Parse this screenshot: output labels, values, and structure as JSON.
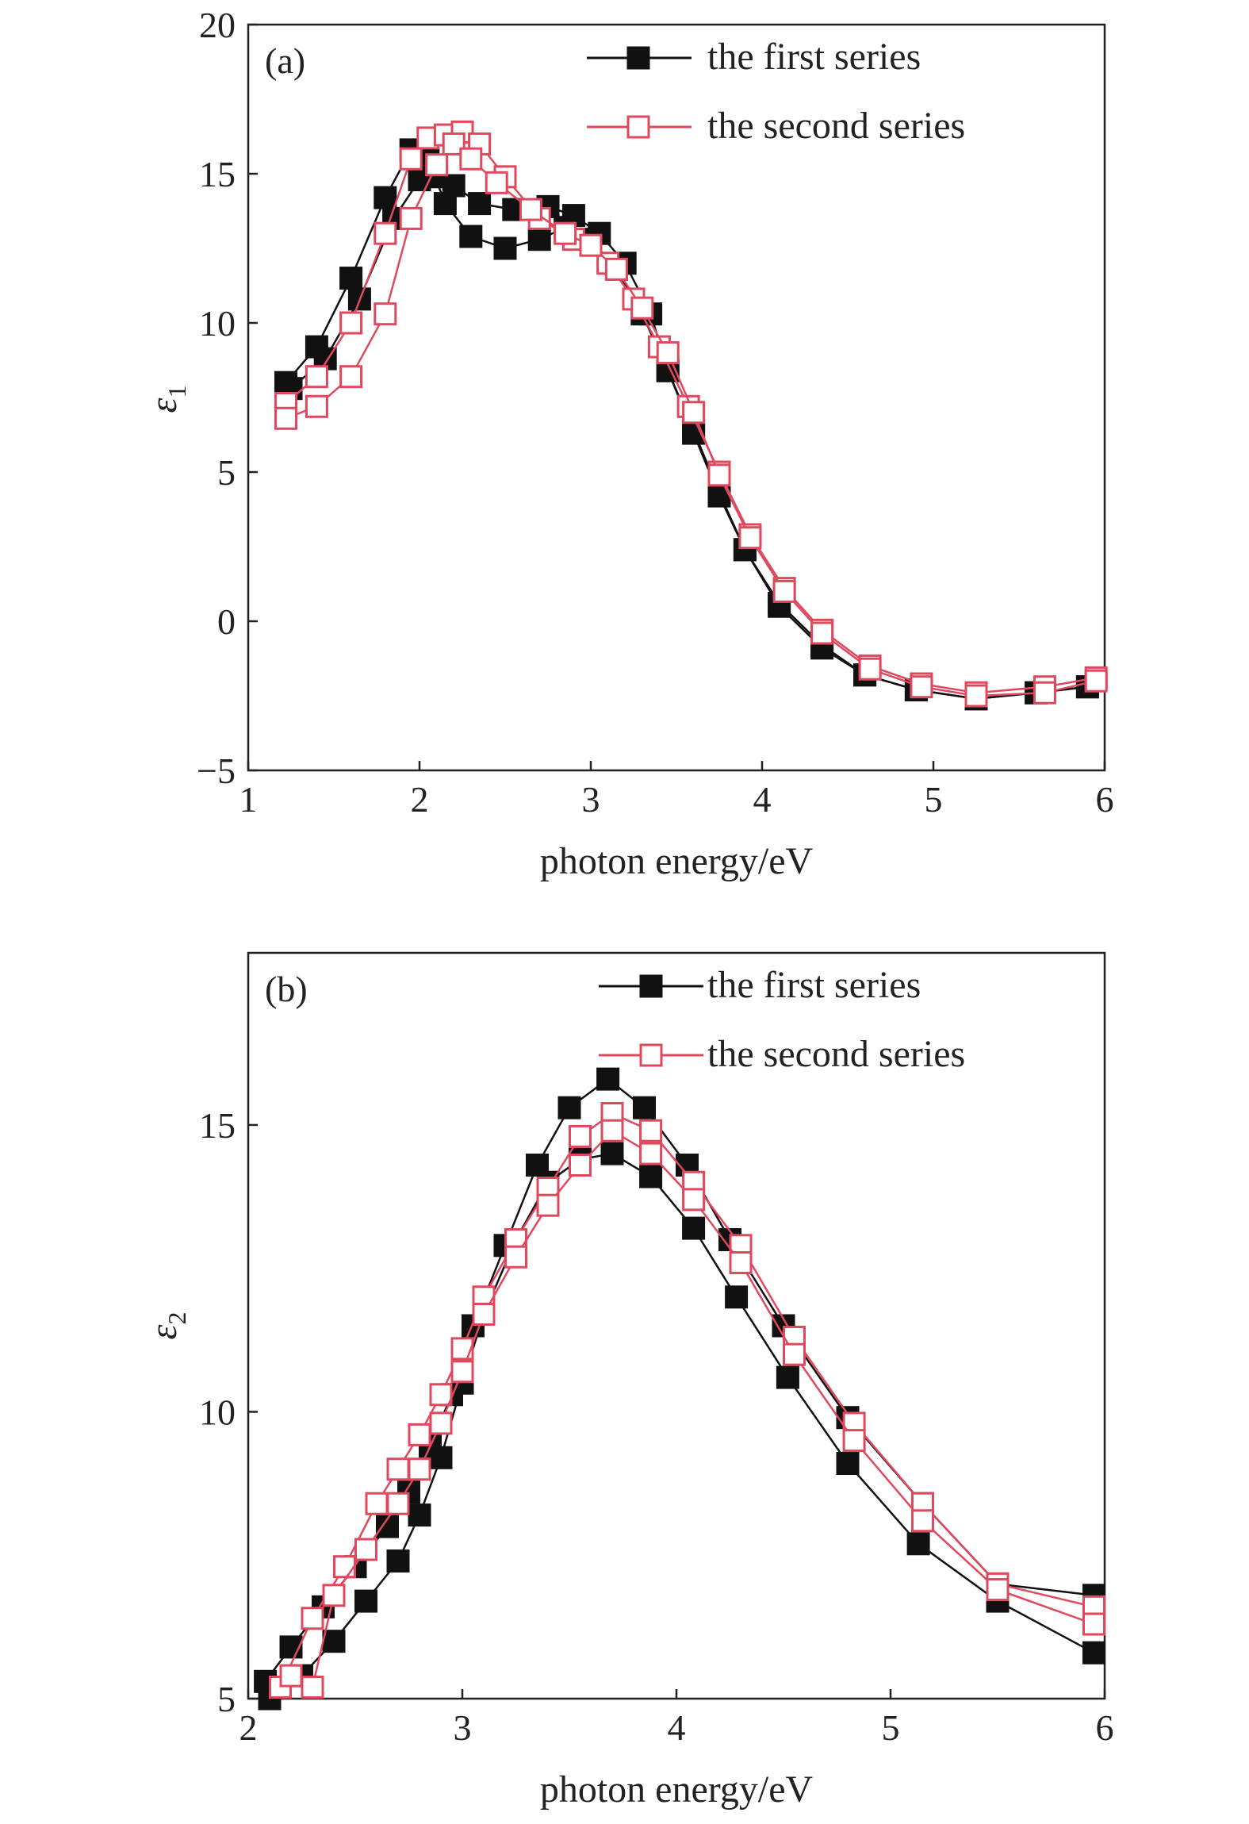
{
  "colors": {
    "series1": "#111111",
    "series2": "#e0485e",
    "axis": "#222222",
    "background": "#ffffff"
  },
  "chart_data": [
    {
      "type": "line",
      "panel_label": "(a)",
      "xlabel": "photon energy/eV",
      "ylabel": {
        "symbol": "ε",
        "subscript": "1"
      },
      "xlim": [
        1,
        6
      ],
      "ylim": [
        -5,
        20
      ],
      "xticks": [
        1,
        2,
        3,
        4,
        5,
        6
      ],
      "yticks": [
        -5,
        0,
        5,
        10,
        15,
        20
      ],
      "ytick_labels": [
        "−5",
        "0",
        "5",
        "10",
        "15",
        "20"
      ],
      "grid": false,
      "legend_position": "top-right",
      "legend": [
        {
          "label": "the first series",
          "marker": "filled-square",
          "color": "#111111"
        },
        {
          "label": "the second series",
          "marker": "open-square",
          "color": "#e0485e"
        }
      ],
      "series": [
        {
          "style": 0,
          "x": [
            1.22,
            1.4,
            1.6,
            1.8,
            1.95,
            2.05,
            2.15,
            2.3,
            2.5,
            2.7,
            2.85,
            3.0,
            3.15,
            3.3,
            3.45,
            3.6,
            3.75,
            3.9,
            4.1,
            4.35,
            4.6,
            4.9,
            5.25,
            5.6,
            5.9
          ],
          "y": [
            8.0,
            9.2,
            11.5,
            14.2,
            15.8,
            15.5,
            14.0,
            12.9,
            12.5,
            12.8,
            13.2,
            12.8,
            11.8,
            10.3,
            8.4,
            6.4,
            4.3,
            2.4,
            0.6,
            -0.8,
            -1.8,
            -2.3,
            -2.6,
            -2.4,
            -2.2
          ]
        },
        {
          "style": 0,
          "x": [
            1.25,
            1.45,
            1.65,
            1.85,
            2.0,
            2.1,
            2.2,
            2.35,
            2.55,
            2.75,
            2.9,
            3.05,
            3.2,
            3.35,
            3.45,
            3.6,
            3.75,
            3.9,
            4.1,
            4.35,
            4.6,
            4.9,
            5.25,
            5.6,
            5.9
          ],
          "y": [
            7.8,
            8.8,
            10.8,
            13.5,
            14.8,
            14.9,
            14.6,
            14.0,
            13.8,
            13.9,
            13.6,
            13.0,
            12.0,
            10.3,
            8.4,
            6.3,
            4.2,
            2.4,
            0.5,
            -0.9,
            -1.8,
            -2.3,
            -2.6,
            -2.4,
            -2.2
          ]
        },
        {
          "style": 1,
          "x": [
            1.22,
            1.4,
            1.6,
            1.8,
            1.95,
            2.05,
            2.15,
            2.25,
            2.35,
            2.5,
            2.7,
            2.9,
            3.1,
            3.25,
            3.4,
            3.57,
            3.75,
            3.93,
            4.13,
            4.35,
            4.63,
            4.93,
            5.25,
            5.65,
            5.95
          ],
          "y": [
            7.3,
            8.2,
            10.0,
            13.0,
            15.5,
            16.2,
            16.3,
            16.4,
            16.0,
            14.9,
            13.5,
            12.8,
            12.0,
            10.8,
            9.2,
            7.2,
            5.0,
            2.9,
            1.1,
            -0.3,
            -1.5,
            -2.1,
            -2.4,
            -2.2,
            -1.9
          ]
        },
        {
          "style": 1,
          "x": [
            1.22,
            1.4,
            1.6,
            1.8,
            1.95,
            2.1,
            2.2,
            2.3,
            2.45,
            2.65,
            2.85,
            3.0,
            3.15,
            3.3,
            3.45,
            3.6,
            3.75,
            3.93,
            4.13,
            4.35,
            4.63,
            4.93,
            5.25,
            5.65,
            5.95
          ],
          "y": [
            6.8,
            7.2,
            8.2,
            10.3,
            13.5,
            15.3,
            16.0,
            15.5,
            14.7,
            13.8,
            13.0,
            12.6,
            11.8,
            10.5,
            9.0,
            7.0,
            4.9,
            2.8,
            1.0,
            -0.4,
            -1.6,
            -2.2,
            -2.5,
            -2.4,
            -2.0
          ]
        }
      ]
    },
    {
      "type": "line",
      "panel_label": "(b)",
      "xlabel": "photon energy/eV",
      "ylabel": {
        "symbol": "ε",
        "subscript": "2"
      },
      "xlim": [
        2,
        6
      ],
      "ylim": [
        5,
        18
      ],
      "xticks": [
        2,
        3,
        4,
        5,
        6
      ],
      "yticks": [
        5,
        10,
        15
      ],
      "ytick_labels": [
        "5",
        "10",
        "15"
      ],
      "grid": false,
      "legend_position": "top-right",
      "legend": [
        {
          "label": "the first series",
          "marker": "filled-square",
          "color": "#111111"
        },
        {
          "label": "the second series",
          "marker": "open-square",
          "color": "#e0485e"
        }
      ],
      "series": [
        {
          "style": 0,
          "x": [
            2.08,
            2.2,
            2.35,
            2.5,
            2.65,
            2.75,
            2.85,
            2.95,
            3.05,
            3.2,
            3.35,
            3.5,
            3.68,
            3.85,
            4.05,
            4.25,
            4.5,
            4.8,
            5.15,
            5.5,
            5.95
          ],
          "y": [
            5.3,
            5.9,
            6.6,
            7.3,
            8.0,
            8.6,
            9.4,
            10.3,
            11.5,
            12.9,
            14.3,
            15.3,
            15.8,
            15.3,
            14.3,
            13.0,
            11.5,
            9.9,
            8.4,
            7.0,
            6.8
          ]
        },
        {
          "style": 0,
          "x": [
            2.1,
            2.25,
            2.4,
            2.55,
            2.7,
            2.8,
            2.9,
            3.0,
            3.1,
            3.25,
            3.4,
            3.55,
            3.7,
            3.88,
            4.08,
            4.28,
            4.52,
            4.8,
            5.13,
            5.5,
            5.95
          ],
          "y": [
            5.0,
            5.4,
            6.0,
            6.7,
            7.4,
            8.2,
            9.2,
            10.5,
            11.7,
            13.0,
            14.0,
            14.4,
            14.5,
            14.1,
            13.2,
            12.0,
            10.6,
            9.1,
            7.7,
            6.7,
            5.8
          ]
        },
        {
          "style": 1,
          "x": [
            2.15,
            2.3,
            2.45,
            2.6,
            2.7,
            2.8,
            2.9,
            3.0,
            3.1,
            3.25,
            3.4,
            3.55,
            3.7,
            3.88,
            4.08,
            4.3,
            4.55,
            4.83,
            5.15,
            5.5,
            5.95
          ],
          "y": [
            5.2,
            6.4,
            7.3,
            8.4,
            9.0,
            9.6,
            10.3,
            11.1,
            12.0,
            13.0,
            13.9,
            14.8,
            15.2,
            14.9,
            14.0,
            12.9,
            11.3,
            9.8,
            8.4,
            7.0,
            6.6
          ]
        },
        {
          "style": 1,
          "x": [
            2.2,
            2.3,
            2.4,
            2.55,
            2.7,
            2.8,
            2.9,
            3.0,
            3.1,
            3.25,
            3.4,
            3.55,
            3.7,
            3.88,
            4.08,
            4.3,
            4.55,
            4.83,
            5.15,
            5.5,
            5.95
          ],
          "y": [
            5.4,
            5.2,
            6.8,
            7.6,
            8.4,
            9.0,
            9.8,
            10.7,
            11.7,
            12.7,
            13.6,
            14.3,
            14.9,
            14.5,
            13.7,
            12.6,
            11.0,
            9.5,
            8.1,
            6.9,
            6.3
          ]
        }
      ]
    }
  ]
}
